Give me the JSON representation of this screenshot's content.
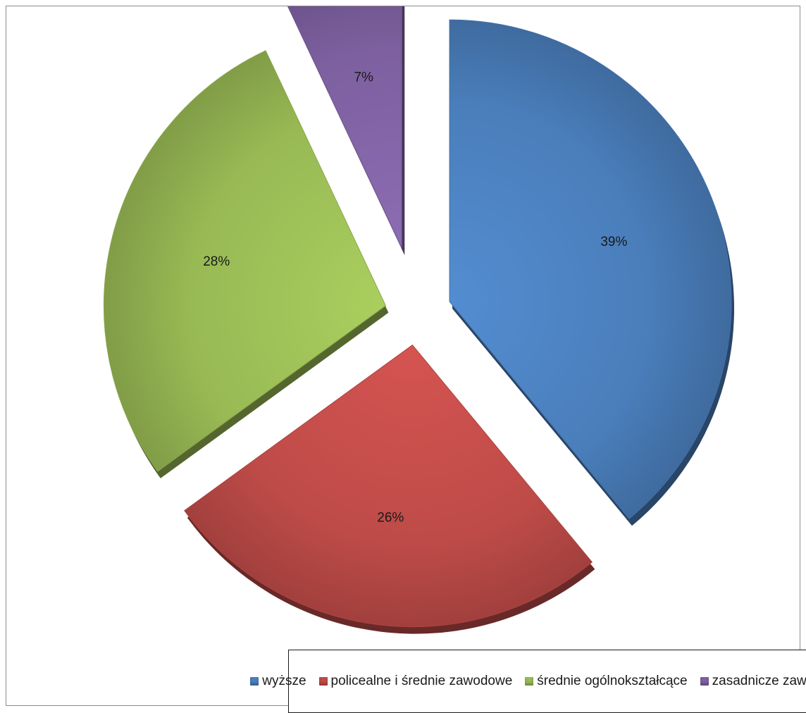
{
  "chart_data": {
    "type": "pie",
    "series": [
      {
        "name": "wyższe",
        "value": 39,
        "label": "39%",
        "color": "#4a7ebb"
      },
      {
        "name": "policealne i średnie zawodowe",
        "value": 26,
        "label": "26%",
        "color": "#be4b48"
      },
      {
        "name": "średnie ogólnokształcące",
        "value": 28,
        "label": "28%",
        "color": "#98b954"
      },
      {
        "name": "zasadnicze zawodowe",
        "value": 7,
        "label": "7%",
        "color": "#7d60a0"
      }
    ],
    "legend_position": "bottom",
    "style": "3d-exploded"
  }
}
